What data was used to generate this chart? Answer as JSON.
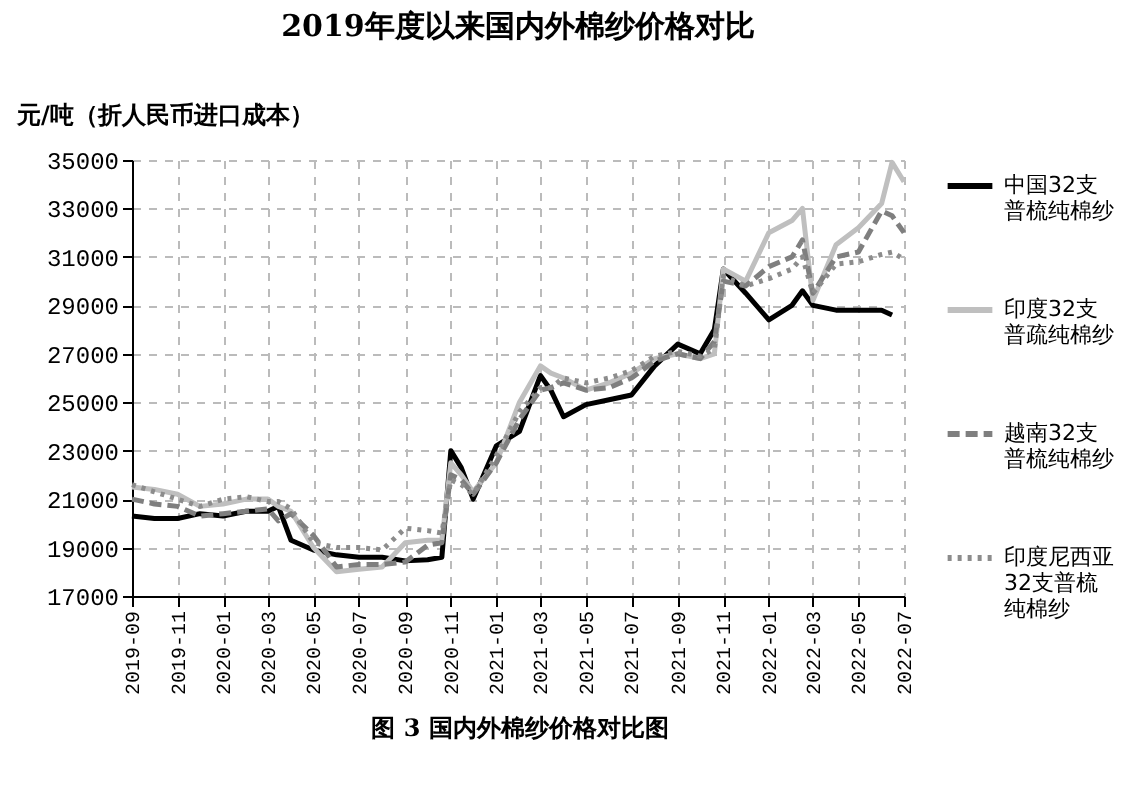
{
  "chart_data": {
    "type": "line",
    "title": "2019年度以来国内外棉纱价格对比",
    "ylabel": "元/吨（折人民币进口成本）",
    "annotations": [
      "图 3   国内外棉纱价格对比图"
    ],
    "x": [
      "2019-09",
      "2019-10",
      "2019-11",
      "2019-12",
      "2020-01",
      "2020-02",
      "2020-03",
      "2020-03-15",
      "2020-04",
      "2020-05",
      "2020-06",
      "2020-07",
      "2020-08",
      "2020-09",
      "2020-10",
      "2020-10-20",
      "2020-11",
      "2020-11-15",
      "2020-12",
      "2021-01",
      "2021-02",
      "2021-03",
      "2021-03-15",
      "2021-04",
      "2021-05",
      "2021-06",
      "2021-07",
      "2021-08",
      "2021-09",
      "2021-10",
      "2021-10-20",
      "2021-11",
      "2021-12",
      "2022-01",
      "2022-02",
      "2022-02-15",
      "2022-03",
      "2022-04",
      "2022-05",
      "2022-06",
      "2022-06-15",
      "2022-07"
    ],
    "series": [
      {
        "name": "中国32支普梳纯棉纱",
        "color": "#000000",
        "line_style": "solid",
        "values": [
          20300,
          20200,
          20200,
          20400,
          20300,
          20500,
          20500,
          20700,
          19300,
          18900,
          18700,
          18600,
          18600,
          18450,
          18500,
          18600,
          23000,
          22300,
          21000,
          23200,
          23800,
          26100,
          25500,
          24400,
          24900,
          25100,
          25300,
          26500,
          27400,
          27000,
          28000,
          30500,
          29500,
          28400,
          29000,
          29600,
          29000,
          28800,
          28800,
          28800,
          28600,
          null
        ]
      },
      {
        "name": "印度32支普疏纯棉纱",
        "color": "#bfbfbf",
        "line_style": "solid",
        "values": [
          21500,
          21400,
          21200,
          20700,
          20800,
          21000,
          21000,
          20700,
          20500,
          19000,
          18000,
          18100,
          18200,
          19200,
          19300,
          19300,
          22500,
          22000,
          21300,
          22500,
          25000,
          26500,
          26200,
          26000,
          25500,
          25800,
          26200,
          26800,
          27000,
          26800,
          27000,
          30500,
          30000,
          32000,
          32500,
          33000,
          29200,
          31500,
          32200,
          33200,
          34900,
          34100
        ]
      },
      {
        "name": "越南32支普梳纯棉纱",
        "color": "#7f7f7f",
        "line_style": "dashed",
        "values": [
          21000,
          20800,
          20700,
          20300,
          20400,
          20500,
          20600,
          20100,
          20400,
          19500,
          18200,
          18300,
          18300,
          18400,
          19100,
          19200,
          22000,
          21800,
          21200,
          22500,
          24300,
          25500,
          25600,
          25800,
          25500,
          25600,
          26000,
          26700,
          27000,
          26800,
          27500,
          30000,
          29800,
          30600,
          31000,
          31700,
          29500,
          31000,
          31200,
          32900,
          32700,
          32000
        ]
      },
      {
        "name": "印度尼西亚32支普梳纯棉纱",
        "color": "#8c8c8c",
        "line_style": "dotted",
        "values": [
          21600,
          21300,
          21000,
          20700,
          21000,
          21100,
          20900,
          20900,
          20600,
          19200,
          19000,
          19000,
          18900,
          19800,
          19700,
          19600,
          21800,
          21600,
          21200,
          22800,
          24600,
          25600,
          25600,
          26000,
          25800,
          26000,
          26300,
          26900,
          27100,
          26900,
          27200,
          30200,
          29800,
          30100,
          30500,
          31000,
          29500,
          30700,
          30800,
          31100,
          31200,
          30900
        ]
      }
    ],
    "xlim": [
      "2019-09",
      "2022-07"
    ],
    "xticks": [
      "2019-09",
      "2019-11",
      "2020-01",
      "2020-03",
      "2020-05",
      "2020-07",
      "2020-09",
      "2020-11",
      "2021-01",
      "2021-03",
      "2021-05",
      "2021-07",
      "2021-09",
      "2021-11",
      "2022-01",
      "2022-03",
      "2022-05",
      "2022-07"
    ],
    "ylim": [
      17000,
      35000
    ],
    "yticks": [
      17000,
      19000,
      21000,
      23000,
      25000,
      27000,
      29000,
      31000,
      33000,
      35000
    ],
    "grid": true,
    "legend": "right"
  }
}
